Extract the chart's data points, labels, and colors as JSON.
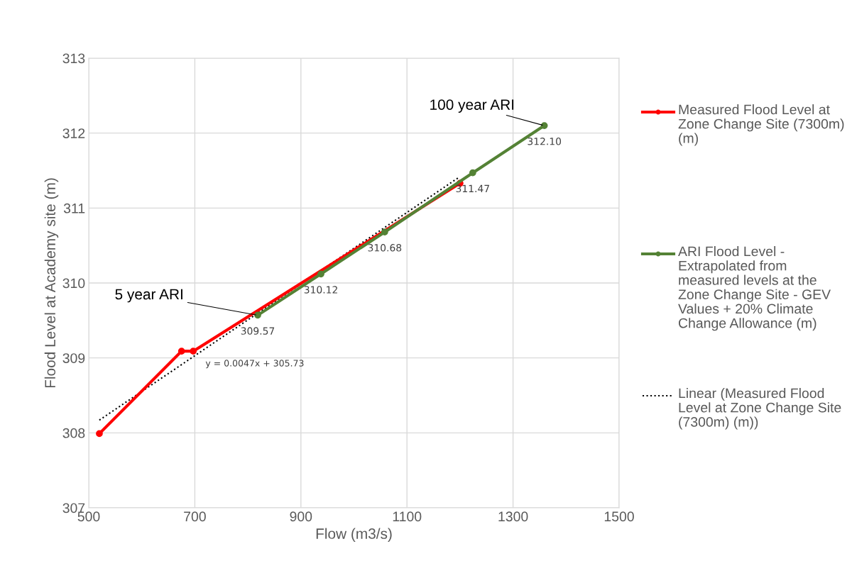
{
  "chart_data": {
    "type": "line",
    "xlabel": "Flow (m3/s)",
    "ylabel": "Flood Level at Academy site (m)",
    "xlim": [
      500,
      1500
    ],
    "xticks": [
      500,
      700,
      900,
      1100,
      1300,
      1500
    ],
    "ylim": [
      307,
      313
    ],
    "yticks": [
      307,
      308,
      309,
      310,
      311,
      312,
      313
    ],
    "grid": true,
    "legend": "right",
    "marker": "circle",
    "series": [
      {
        "name": "Measured Flood Level at Zone Change Site (7300m)\n(m)",
        "color": "#ff0000",
        "x": [
          520,
          675,
          697,
          1200
        ],
        "values": [
          307.99,
          309.09,
          309.09,
          311.33
        ]
      },
      {
        "name": "ARI Flood Level - Extrapolated from measured levels at the Zone Change Site - GEV Values + 20% Climate Change Allowance (m)",
        "color": "#548235",
        "x": [
          818.6,
          937.8,
          1058,
          1224,
          1359
        ],
        "values": [
          309.57,
          310.12,
          310.68,
          311.47,
          312.1
        ],
        "value_labels": [
          "309.57",
          "310.12",
          "310.68",
          "311.47",
          "312.10"
        ]
      },
      {
        "name": "Linear (Measured Flood Level at Zone Change Site (7300m) (m))",
        "color": "#000000",
        "type": "line",
        "marker": "none",
        "line_style": "dotted",
        "x": [
          520,
          1196
        ],
        "values": [
          308.17,
          311.4
        ]
      }
    ],
    "annotations": [
      {
        "text": "5 year ARI",
        "x": 818.6,
        "y": 309.57
      },
      {
        "text": "100 year ARI",
        "x": 1359,
        "y": 312.1
      },
      "y = 0.0047x + 305.73"
    ]
  }
}
